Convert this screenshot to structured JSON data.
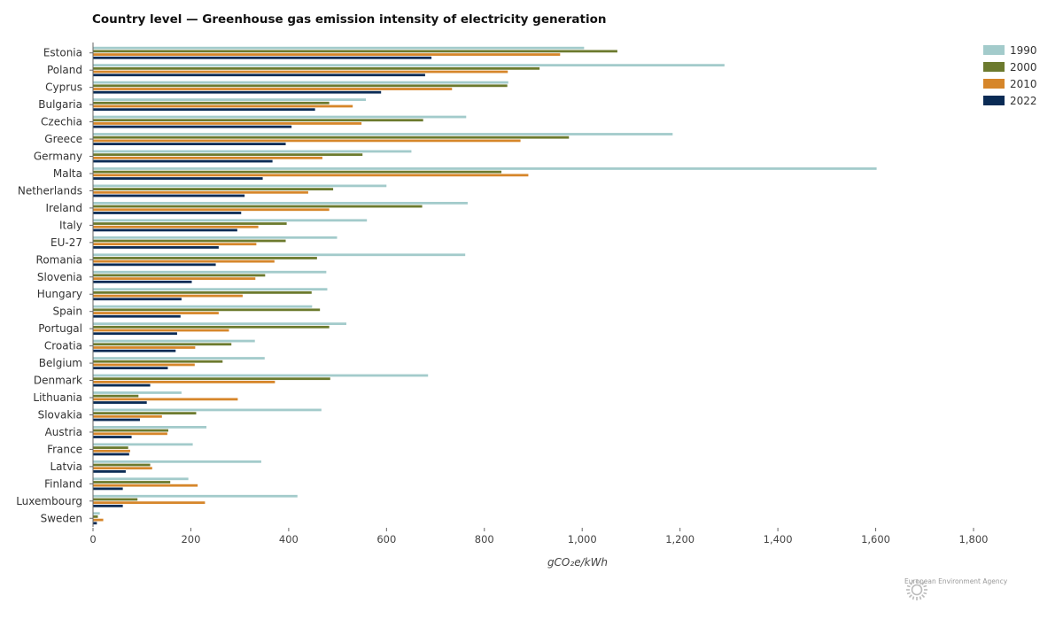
{
  "chart_data": {
    "type": "bar",
    "orientation": "horizontal",
    "title": "Country level — Greenhouse gas emission intensity of electricity generation",
    "xlabel": "gCO₂e/kWh",
    "ylabel": "",
    "xlim": [
      0,
      1800
    ],
    "xticks": [
      0,
      200,
      400,
      600,
      800,
      1000,
      1200,
      1400,
      1600,
      1800
    ],
    "xtick_labels": [
      "0",
      "200",
      "400",
      "600",
      "800",
      "1,000",
      "1,200",
      "1,400",
      "1,600",
      "1,800"
    ],
    "grid": false,
    "legend_position": "top-right",
    "categories": [
      "Estonia",
      "Poland",
      "Cyprus",
      "Bulgaria",
      "Czechia",
      "Greece",
      "Germany",
      "Malta",
      "Netherlands",
      "Ireland",
      "Italy",
      "EU-27",
      "Romania",
      "Slovenia",
      "Hungary",
      "Spain",
      "Portugal",
      "Croatia",
      "Belgium",
      "Denmark",
      "Lithuania",
      "Slovakia",
      "Austria",
      "France",
      "Latvia",
      "Finland",
      "Luxembourg",
      "Sweden"
    ],
    "series": [
      {
        "name": "1990",
        "color": "#a3cbcb",
        "values": [
          1003,
          1290,
          848,
          557,
          762,
          1184,
          650,
          1601,
          599,
          765,
          559,
          498,
          760,
          476,
          478,
          447,
          517,
          330,
          350,
          684,
          180,
          466,
          231,
          203,
          343,
          194,
          417,
          13
        ]
      },
      {
        "name": "2000",
        "color": "#6c7a2e",
        "values": [
          1071,
          912,
          846,
          482,
          674,
          972,
          550,
          834,
          490,
          672,
          395,
          393,
          457,
          351,
          446,
          463,
          482,
          282,
          264,
          484,
          92,
          210,
          153,
          71,
          116,
          157,
          90,
          9
        ]
      },
      {
        "name": "2010",
        "color": "#d6862a",
        "values": [
          954,
          847,
          733,
          530,
          548,
          873,
          468,
          889,
          439,
          482,
          337,
          333,
          370,
          331,
          305,
          256,
          277,
          208,
          207,
          371,
          295,
          140,
          151,
          75,
          120,
          213,
          228,
          20
        ]
      },
      {
        "name": "2022",
        "color": "#0a2b55",
        "values": [
          691,
          678,
          588,
          453,
          405,
          393,
          366,
          346,
          309,
          302,
          294,
          256,
          250,
          201,
          180,
          178,
          171,
          168,
          152,
          116,
          109,
          95,
          78,
          73,
          66,
          60,
          60,
          7
        ]
      }
    ]
  },
  "footer": {
    "agency": "European Environment Agency"
  }
}
